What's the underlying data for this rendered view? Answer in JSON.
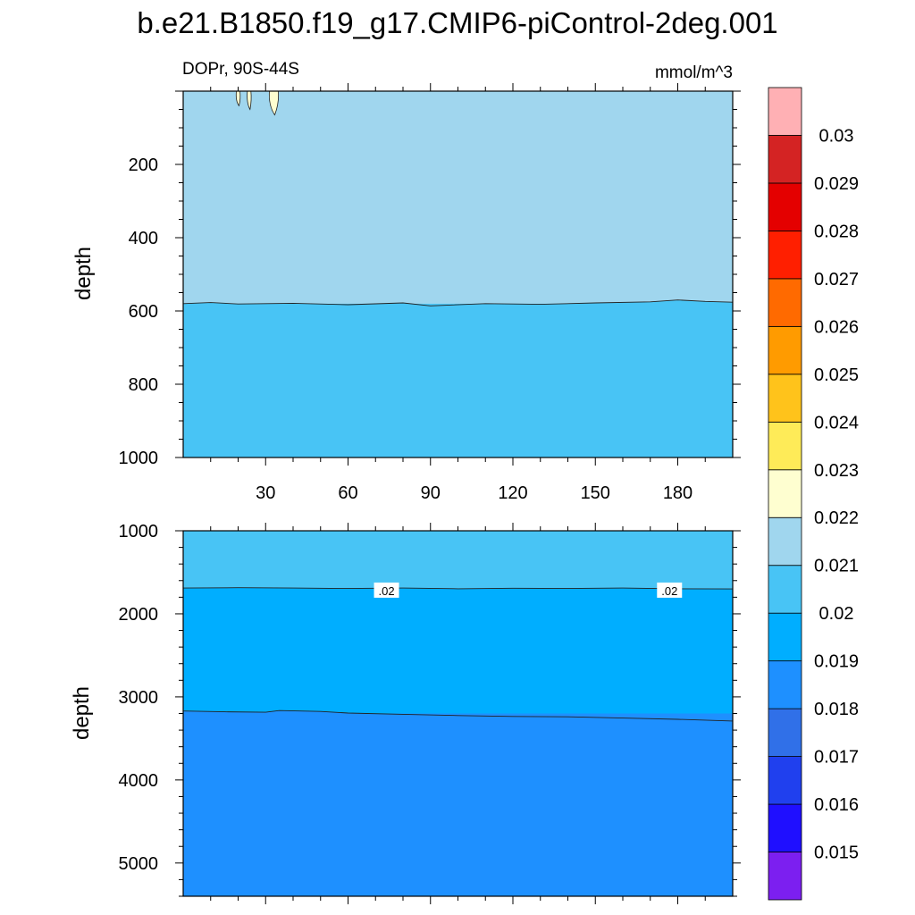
{
  "chart_data": {
    "type": "contour",
    "title": "b.e21.B1850.f19_g17.CMIP6-piControl-2deg.001",
    "left_string": "DOPr, 90S-44S",
    "units": "mmol/m^3",
    "xlabel": "",
    "ylabel": "depth",
    "xlim": [
      0,
      200
    ],
    "x_ticks": [
      30,
      60,
      90,
      120,
      150,
      180
    ],
    "x_tick_labels": [
      "30",
      "60",
      "90",
      "120",
      "150",
      "180"
    ],
    "panels": [
      {
        "name": "upper",
        "ylim": [
          0,
          1000
        ],
        "y_ticks": [
          200,
          400,
          600,
          800,
          1000
        ],
        "y_tick_labels": [
          "200",
          "400",
          "600",
          "800",
          "1000"
        ],
        "ylabel": "depth",
        "regions": [
          {
            "range": "0.021-0.022",
            "depth_top": 0,
            "depth_bottom": 580
          },
          {
            "range": "0.020-0.021",
            "depth_top": 580,
            "depth_bottom": 1000
          }
        ],
        "contour_0_021_depth": [
          [
            0,
            580
          ],
          [
            10,
            577
          ],
          [
            20,
            581
          ],
          [
            40,
            579
          ],
          [
            60,
            583
          ],
          [
            80,
            578
          ],
          [
            90,
            586
          ],
          [
            110,
            580
          ],
          [
            130,
            582
          ],
          [
            150,
            578
          ],
          [
            170,
            575
          ],
          [
            180,
            570
          ],
          [
            190,
            574
          ],
          [
            200,
            576
          ]
        ],
        "patches_0_022": [
          {
            "x": 20,
            "depth_top": 0,
            "depth_bottom": 40
          },
          {
            "x": 24,
            "depth_top": 0,
            "depth_bottom": 50
          },
          {
            "x": 33,
            "depth_top": 0,
            "depth_bottom": 65
          }
        ]
      },
      {
        "name": "lower",
        "ylim": [
          1000,
          5400
        ],
        "y_ticks": [
          1000,
          2000,
          3000,
          4000,
          5000
        ],
        "y_tick_labels": [
          "1000",
          "2000",
          "3000",
          "4000",
          "5000"
        ],
        "ylabel": "depth",
        "regions": [
          {
            "range": "0.020-0.021",
            "depth_top": 1000,
            "depth_bottom": 1700
          },
          {
            "range": "0.019-0.020",
            "depth_top": 1700,
            "depth_bottom": 3200
          },
          {
            "range": "0.018-0.019",
            "depth_top": 3200,
            "depth_bottom": 5400
          }
        ],
        "contour_0_020_depth": [
          [
            0,
            1690
          ],
          [
            20,
            1685
          ],
          [
            40,
            1690
          ],
          [
            60,
            1695
          ],
          [
            80,
            1690
          ],
          [
            100,
            1698
          ],
          [
            120,
            1692
          ],
          [
            140,
            1695
          ],
          [
            160,
            1690
          ],
          [
            180,
            1698
          ],
          [
            200,
            1700
          ]
        ],
        "contour_0_019_depth": [
          [
            0,
            3170
          ],
          [
            15,
            3180
          ],
          [
            30,
            3185
          ],
          [
            35,
            3165
          ],
          [
            50,
            3175
          ],
          [
            60,
            3195
          ],
          [
            80,
            3210
          ],
          [
            100,
            3225
          ],
          [
            120,
            3235
          ],
          [
            140,
            3240
          ],
          [
            160,
            3255
          ],
          [
            180,
            3270
          ],
          [
            200,
            3290
          ]
        ],
        "contour_labels": [
          {
            "text": ".02",
            "x": 74,
            "depth": 1720
          },
          {
            "text": ".02",
            "x": 177,
            "depth": 1720
          }
        ]
      }
    ],
    "colorbar": {
      "colors": [
        "#7c1ff0",
        "#1f0fff",
        "#2040ee",
        "#3070e8",
        "#1e90ff",
        "#00aeff",
        "#48c4f5",
        "#a0d6ee",
        "#fefed0",
        "#feeb58",
        "#ffc31b",
        "#ff9b00",
        "#ff6a00",
        "#ff1f00",
        "#e40000",
        "#d42323",
        "#ffb0b4"
      ],
      "tick_labels": [
        "0.015",
        "0.016",
        "0.017",
        "0.018",
        "0.019",
        "0.02",
        "0.021",
        "0.022",
        "0.023",
        "0.024",
        "0.025",
        "0.026",
        "0.027",
        "0.028",
        "0.029",
        "0.03"
      ]
    }
  }
}
